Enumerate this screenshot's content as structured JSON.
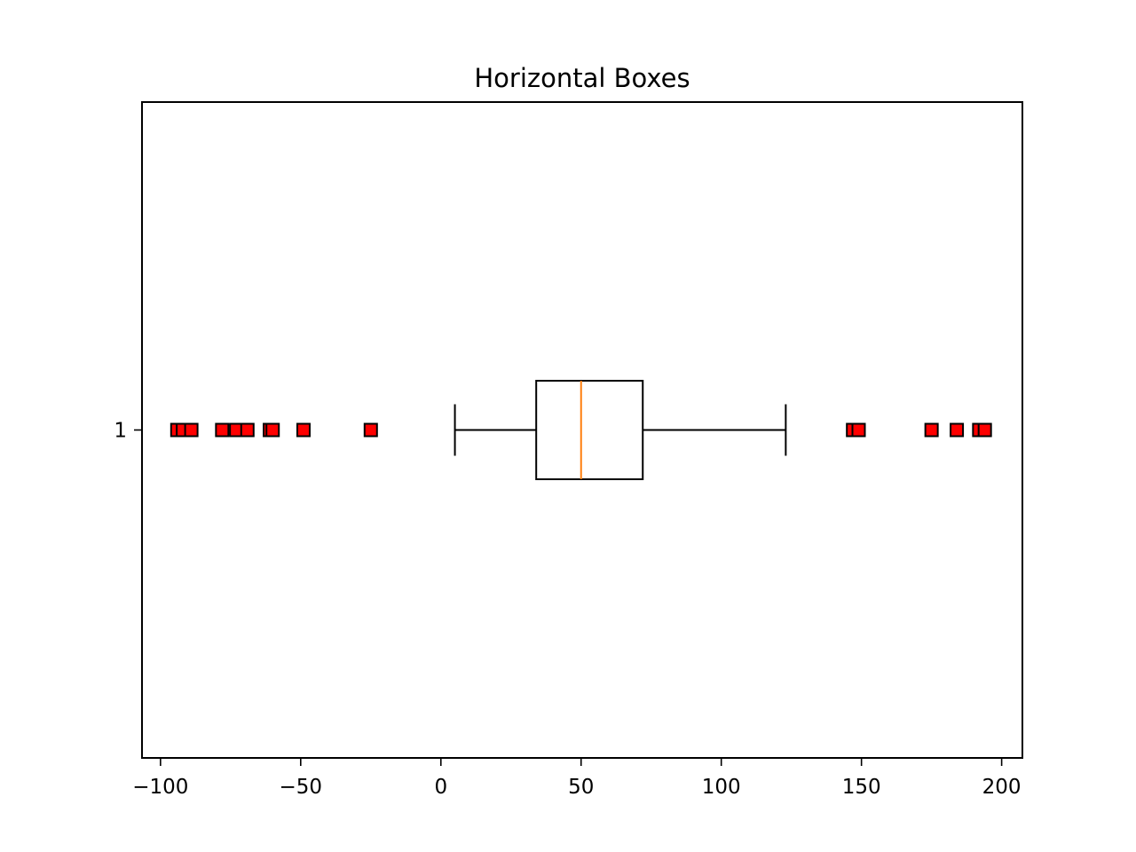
{
  "chart_data": {
    "type": "boxplot",
    "orientation": "horizontal",
    "title": "Horizontal Boxes",
    "xlabel": "",
    "ylabel": "",
    "xlim": [
      -106.6,
      207.4
    ],
    "xticks": [
      -100,
      -50,
      0,
      50,
      100,
      150,
      200
    ],
    "xtick_labels": [
      "−100",
      "−50",
      "0",
      "50",
      "100",
      "150",
      "200"
    ],
    "yticks": [
      1
    ],
    "ytick_labels": [
      "1"
    ],
    "grid": false,
    "boxes": [
      {
        "position": 1,
        "whisker_low": 5,
        "q1": 34,
        "median": 50,
        "q3": 72,
        "whisker_high": 123,
        "outliers": [
          -94,
          -92,
          -89,
          -78,
          -73,
          -69,
          -61,
          -60,
          -49,
          -25,
          147,
          149,
          175,
          184,
          192,
          194
        ]
      }
    ],
    "colors": {
      "box": "#000000",
      "median": "#ff7f0e",
      "flier_fill": "#ff0000",
      "flier_edge": "#000000"
    },
    "flier_marker": "square"
  }
}
